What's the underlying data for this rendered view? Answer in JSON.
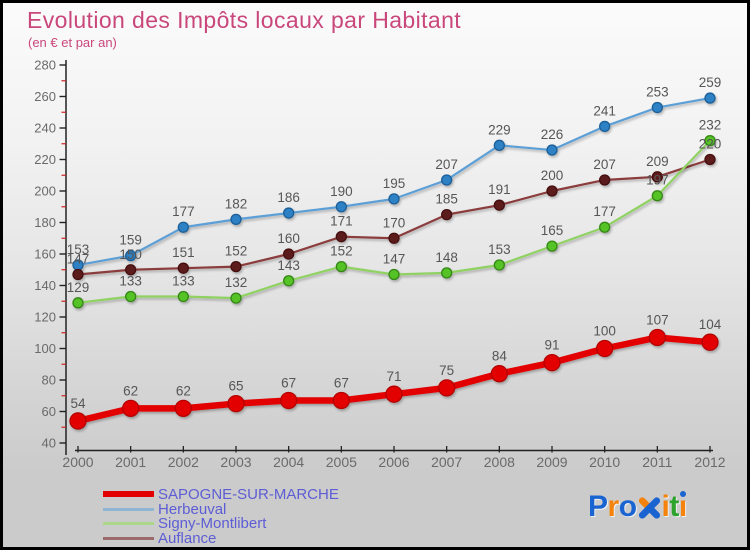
{
  "title": "Evolution des Impôts locaux par Habitant",
  "subtitle": "(en € et par an)",
  "colors": {
    "title": "#c9477b",
    "axis_line": "#222222",
    "tick_major": "#222222",
    "tick_minor": "#cc2222",
    "tick_label": "#6a6a6a",
    "data_label": "#565656",
    "legend_text": "#5d5dd5",
    "background_top": "#fbfbfb",
    "background_bottom": "#cbcbcb"
  },
  "chart_data": {
    "type": "line",
    "title": "Evolution des Impôts locaux par Habitant",
    "subtitle": "(en € et par an)",
    "xlabel": "",
    "ylabel": "",
    "x": [
      2000,
      2001,
      2002,
      2003,
      2004,
      2005,
      2006,
      2007,
      2008,
      2009,
      2010,
      2011,
      2012
    ],
    "ylim": [
      40,
      280
    ],
    "ytick_step": 20,
    "yminor_step": 10,
    "grid": false,
    "legend_position": "bottom-left",
    "series": [
      {
        "name": "SAPOGNE-SUR-MARCHE",
        "values": [
          54,
          62,
          62,
          65,
          67,
          67,
          71,
          75,
          84,
          91,
          100,
          107,
          104
        ],
        "line_color": "#e30000",
        "line_width": 6.5,
        "marker_color": "#e30000",
        "marker_stroke": "#b50000",
        "marker_radius": 8,
        "legend_color": "#e30000",
        "legend_thickness": 6
      },
      {
        "name": "Herbeuval",
        "values": [
          153,
          159,
          177,
          182,
          186,
          190,
          195,
          207,
          229,
          226,
          241,
          253,
          259
        ],
        "line_color": "#5c9fd6",
        "line_width": 2.2,
        "marker_color": "#2d81c4",
        "marker_stroke": "#1c5f98",
        "marker_radius": 5,
        "legend_color": "#8fb4d4",
        "legend_thickness": 3
      },
      {
        "name": "Signy-Montlibert",
        "values": [
          129,
          133,
          133,
          132,
          143,
          152,
          147,
          148,
          153,
          165,
          177,
          197,
          232
        ],
        "line_color": "#8fd262",
        "line_width": 2.2,
        "marker_color": "#54c228",
        "marker_stroke": "#358614",
        "marker_radius": 5,
        "legend_color": "#abd78a",
        "legend_thickness": 3
      },
      {
        "name": "Auflance",
        "values": [
          147,
          150,
          151,
          152,
          160,
          171,
          170,
          185,
          191,
          200,
          207,
          209,
          220
        ],
        "line_color": "#8b3d3d",
        "line_width": 2.2,
        "marker_color": "#5c1d1d",
        "marker_stroke": "#451111",
        "marker_radius": 5,
        "legend_color": "#9b6b6b",
        "legend_thickness": 3
      }
    ]
  },
  "legend_order": [
    "SAPOGNE-SUR-MARCHE",
    "Herbeuval",
    "Signy-Montlibert",
    "Auflance"
  ],
  "logo": {
    "text": "Proxiti",
    "blue": "#1a64d2",
    "orange": "#f5820b",
    "green": "#2da32d",
    "letters": [
      {
        "char": "P",
        "color": "#1a64d2"
      },
      {
        "char": "r",
        "color": "#f5820b"
      },
      {
        "char": "o",
        "color": "#1a64d2"
      },
      {
        "char": "x",
        "color": "icon"
      },
      {
        "char": "i",
        "color": "#f5820b"
      },
      {
        "char": "t",
        "color": "#2da32d"
      },
      {
        "char": "ı",
        "color": "#f5820b",
        "dot_color": "#1a64d2"
      }
    ]
  }
}
